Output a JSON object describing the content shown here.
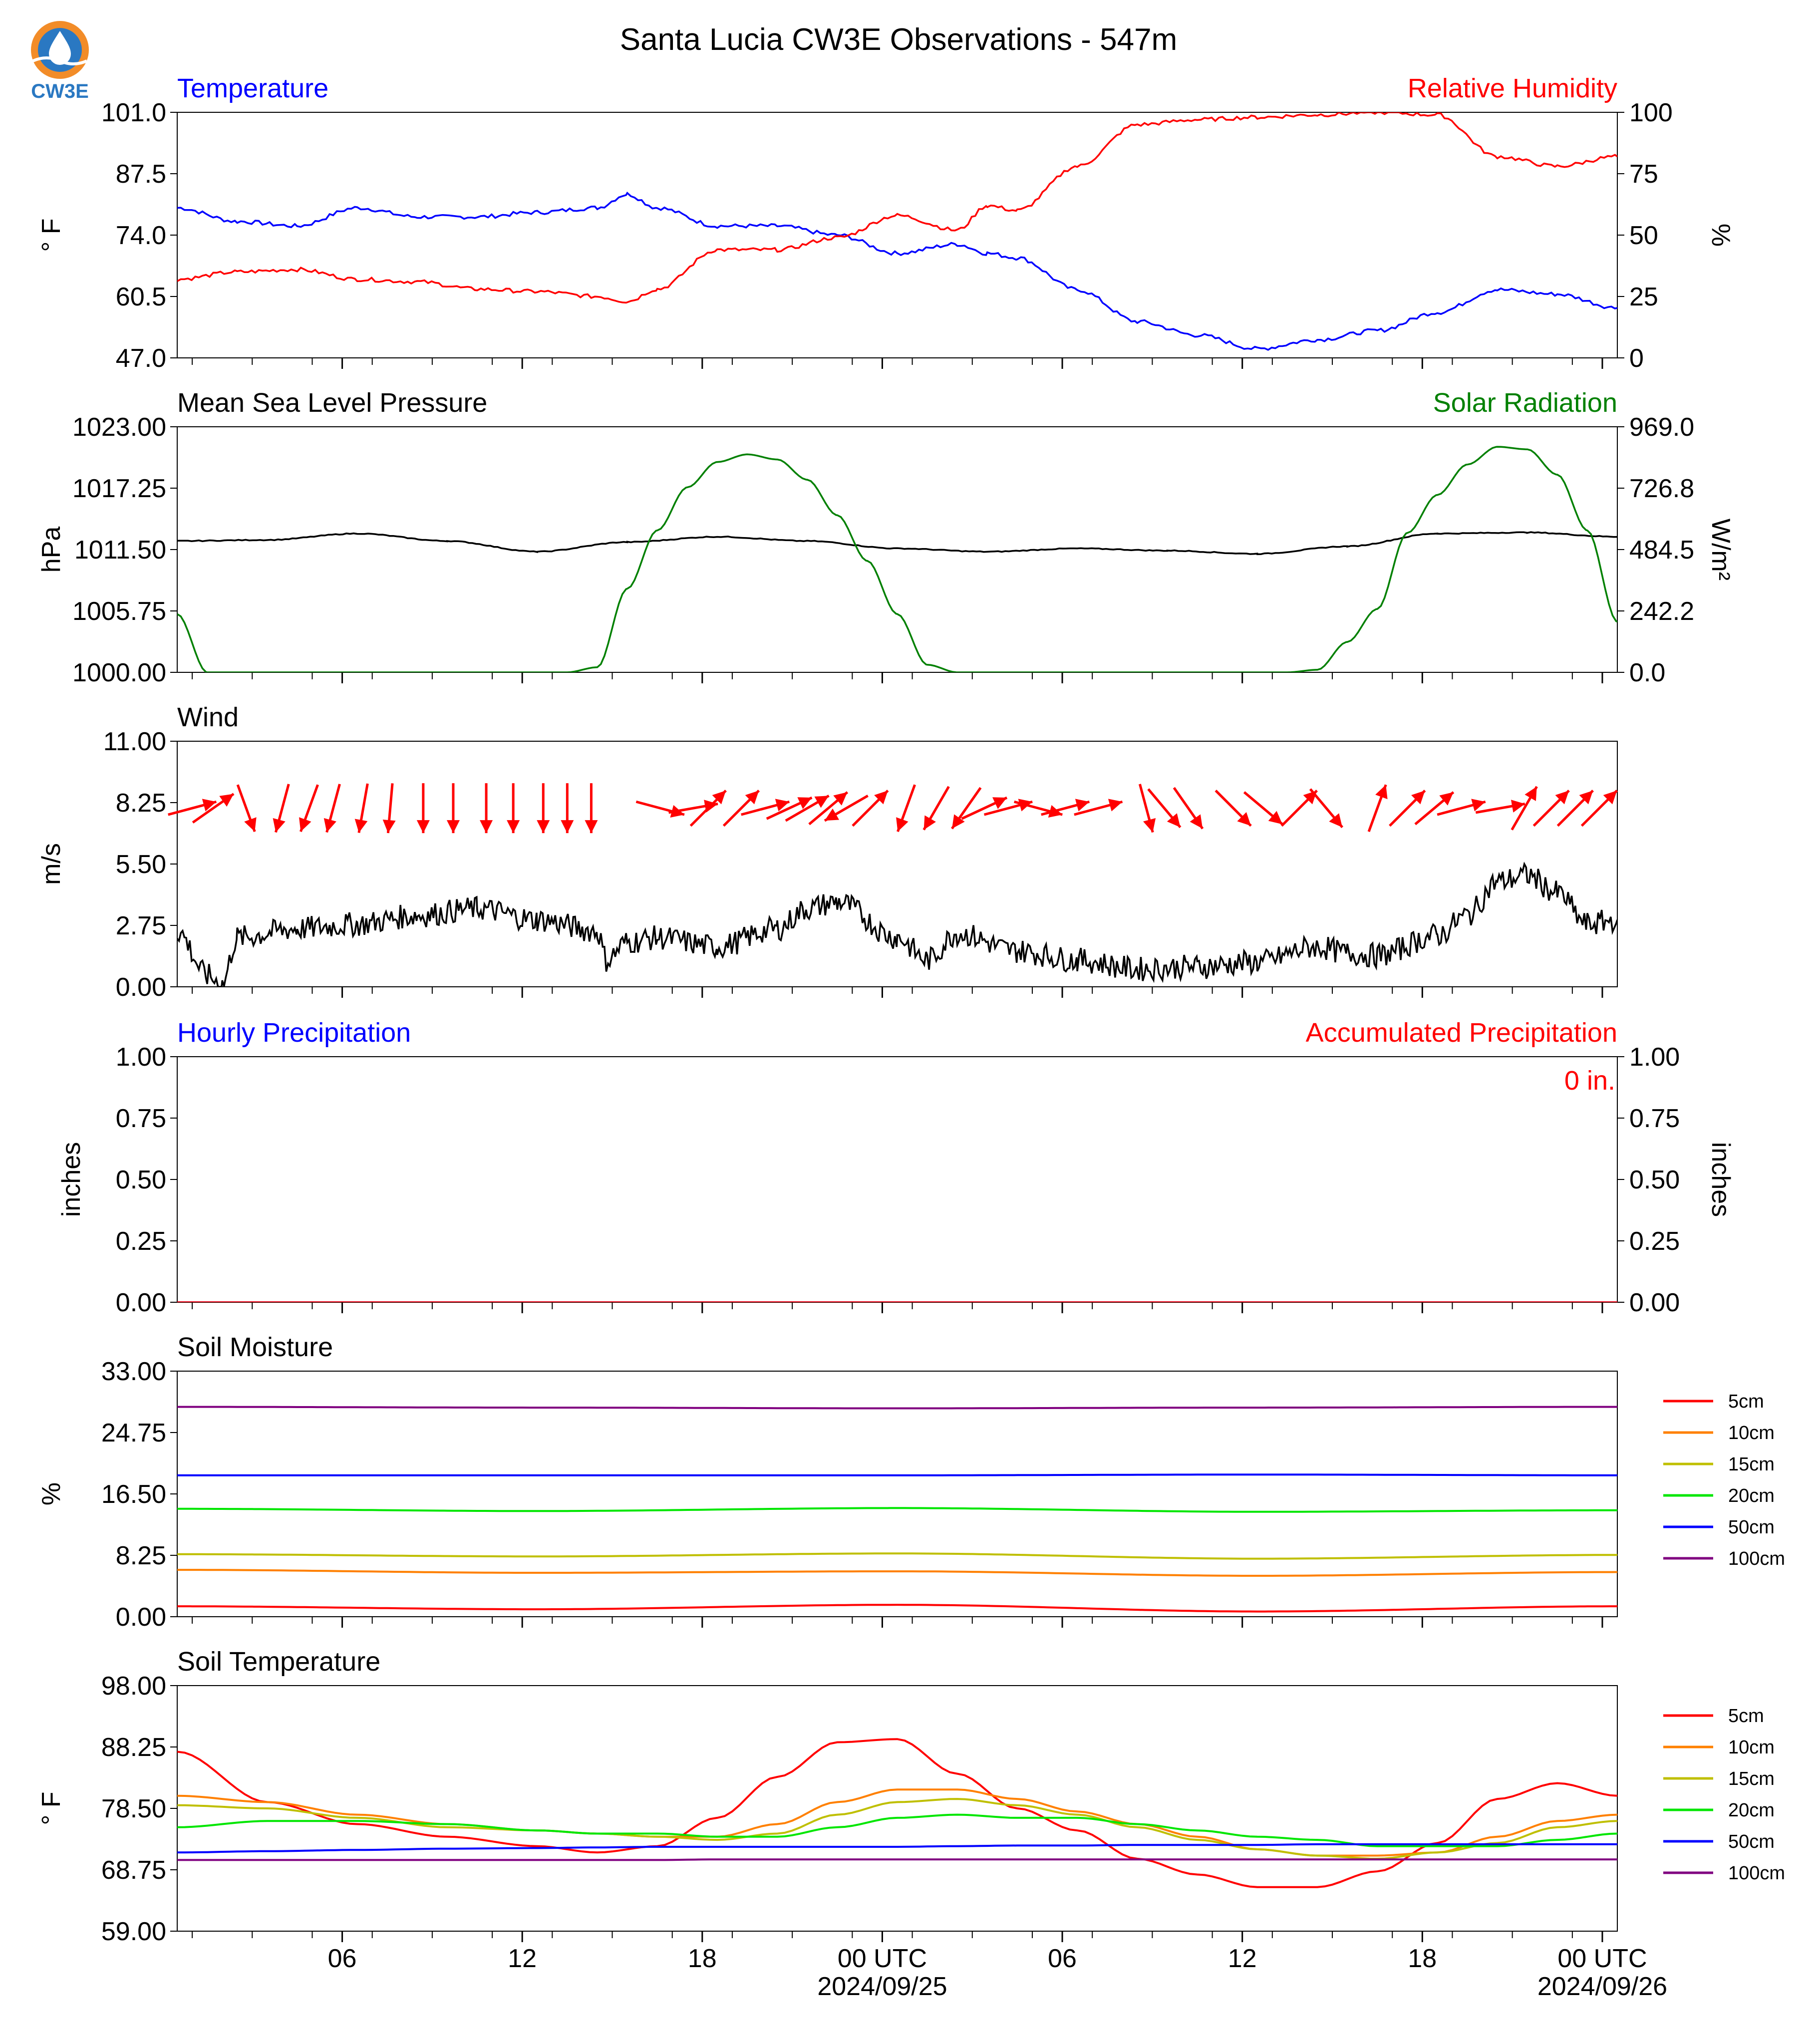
{
  "figure": {
    "title": "Santa Lucia CW3E Observations - 547m",
    "logo_text": "CW3E",
    "x_ticks": [
      "06",
      "12",
      "18",
      "00 UTC",
      "06",
      "12",
      "18",
      "00 UTC"
    ],
    "x_dates": [
      "2024/09/25",
      "2024/09/26"
    ],
    "colors": {
      "temperature": "#0000ff",
      "humidity": "#ff0000",
      "pressure": "#000000",
      "solar": "#008000",
      "wind_speed": "#000000",
      "wind_arrows": "#ff0000",
      "hourly_precip": "#0000ff",
      "accum_precip": "#ff0000"
    }
  },
  "chart_data": [
    {
      "type": "line",
      "panel": "temperature-humidity",
      "title_left": "Temperature",
      "title_right": "Relative Humidity",
      "ylabel_left": "° F",
      "ylabel_right": "%",
      "ylim_left": [
        47.0,
        101.0
      ],
      "ylim_right": [
        0,
        100
      ],
      "yticks_left": [
        "101.0",
        "87.5",
        "74.0",
        "60.5",
        "47.0"
      ],
      "yticks_right": [
        "100",
        "75",
        "50",
        "25",
        "0"
      ],
      "x_hours": [
        0,
        2,
        4,
        6,
        8,
        10,
        12,
        14,
        15,
        16,
        18,
        20,
        22,
        24,
        26,
        27,
        28,
        30,
        32,
        34,
        36,
        38,
        40,
        42,
        44,
        46,
        48
      ],
      "series": [
        {
          "name": "Temperature",
          "axis": "left",
          "values": [
            80,
            77,
            76,
            80,
            78,
            78,
            79,
            80,
            83,
            80,
            76,
            76,
            74,
            70,
            72,
            70,
            69,
            62,
            55,
            52,
            49,
            51,
            53,
            57,
            62,
            61,
            58
          ]
        },
        {
          "name": "Relative Humidity",
          "axis": "right",
          "values": [
            32,
            35,
            36,
            32,
            31,
            28,
            27,
            25,
            23,
            28,
            44,
            44,
            49,
            58,
            52,
            62,
            60,
            78,
            95,
            97,
            98,
            99,
            100,
            99,
            82,
            78,
            82
          ]
        }
      ]
    },
    {
      "type": "line",
      "panel": "pressure-solar",
      "title_left": "Mean Sea Level Pressure",
      "title_right": "Solar Radiation",
      "ylabel_left": "hPa",
      "ylabel_right": "W/m²",
      "ylim_left": [
        1000.0,
        1023.0
      ],
      "ylim_right": [
        0.0,
        969.0
      ],
      "yticks_left": [
        "1023.00",
        "1017.25",
        "1011.50",
        "1005.75",
        "1000.00"
      ],
      "yticks_right": [
        "969.0",
        "726.8",
        "484.5",
        "242.2",
        "0.0"
      ],
      "x_hours": [
        0,
        3,
        6,
        9,
        12,
        15,
        18,
        21,
        24,
        27,
        30,
        33,
        36,
        39,
        42,
        45,
        48
      ],
      "series": [
        {
          "name": "Mean Sea Level Pressure",
          "axis": "left",
          "values": [
            1012.3,
            1012.4,
            1013.0,
            1012.3,
            1011.3,
            1012.2,
            1012.7,
            1012.3,
            1011.6,
            1011.3,
            1011.6,
            1011.4,
            1011.1,
            1011.8,
            1013.0,
            1013.1,
            1012.7
          ]
        },
        {
          "name": "Solar Radiation",
          "axis": "right",
          "x": [
            0,
            1,
            13,
            14,
            15,
            16,
            17,
            18,
            19,
            20,
            21,
            22,
            23,
            24,
            25,
            26,
            37,
            38,
            39,
            40,
            41,
            42,
            43,
            44,
            45,
            46,
            47,
            48
          ],
          "values": [
            230,
            0,
            0,
            20,
            330,
            560,
            730,
            830,
            860,
            840,
            760,
            620,
            440,
            230,
            30,
            0,
            0,
            10,
            120,
            250,
            550,
            700,
            820,
            890,
            880,
            780,
            560,
            200
          ]
        }
      ]
    },
    {
      "type": "line",
      "panel": "wind",
      "title_left": "Wind",
      "ylabel_left": "m/s",
      "ylim_left": [
        0.0,
        11.0
      ],
      "yticks_left": [
        "11.00",
        "8.25",
        "5.50",
        "2.75",
        "0.00"
      ],
      "x_hours": [
        0,
        1,
        1.5,
        2,
        4,
        6,
        8,
        10,
        12,
        14,
        14.3,
        15,
        16,
        18,
        20,
        21,
        22,
        24,
        25,
        26,
        28,
        30,
        32,
        34,
        36,
        38,
        39,
        40,
        42,
        43,
        44,
        45,
        46,
        47,
        48
      ],
      "series": [
        {
          "name": "Wind speed",
          "values": [
            2.5,
            0.5,
            0.1,
            2.2,
            2.6,
            2.8,
            3.2,
            3.5,
            3.0,
            2.5,
            1.2,
            2.0,
            2.2,
            1.8,
            2.6,
            3.5,
            3.8,
            2.2,
            1.2,
            2.4,
            1.6,
            1.2,
            0.8,
            0.9,
            1.1,
            1.8,
            1.5,
            1.4,
            2.3,
            3.2,
            4.7,
            5.0,
            4.2,
            2.8,
            3.0
          ]
        }
      ],
      "wind_vectors": {
        "note": "direction: degrees the arrow points (0 = up/north, 90 = right/east)",
        "x_hours": [
          0.5,
          1.2,
          2.3,
          3.5,
          4.4,
          5.2,
          6.2,
          7.1,
          8.2,
          9.2,
          10.3,
          11.2,
          12.2,
          13.0,
          13.8,
          16.1,
          17.2,
          17.7,
          18.8,
          19.6,
          20.4,
          21.0,
          21.7,
          22.3,
          23.1,
          24.3,
          25.3,
          26.3,
          26.9,
          27.7,
          28.7,
          29.6,
          30.7,
          32.3,
          32.9,
          33.7,
          35.2,
          36.2,
          37.4,
          38.3,
          40.0,
          41.0,
          41.9,
          42.8,
          44.1,
          44.9,
          45.8,
          46.6,
          47.4
        ],
        "directions": [
          75,
          55,
          160,
          195,
          200,
          195,
          190,
          185,
          180,
          180,
          180,
          180,
          180,
          180,
          180,
          105,
          80,
          45,
          45,
          75,
          65,
          60,
          50,
          240,
          45,
          200,
          210,
          215,
          65,
          75,
          105,
          75,
          75,
          165,
          140,
          145,
          135,
          130,
          45,
          140,
          20,
          45,
          50,
          75,
          80,
          30,
          45,
          45,
          45
        ]
      }
    },
    {
      "type": "line",
      "panel": "precipitation",
      "title_left": "Hourly Precipitation",
      "title_right": "Accumulated Precipitation",
      "annotation": "0 in.",
      "ylabel_left": "inches",
      "ylabel_right": "inches",
      "ylim_left": [
        0.0,
        1.0
      ],
      "ylim_right": [
        0.0,
        1.0
      ],
      "yticks_left": [
        "1.00",
        "0.75",
        "0.50",
        "0.25",
        "0.00"
      ],
      "yticks_right": [
        "1.00",
        "0.75",
        "0.50",
        "0.25",
        "0.00"
      ],
      "x_hours": [
        0,
        48
      ],
      "series": [
        {
          "name": "Hourly Precipitation",
          "values": [
            0,
            0
          ]
        },
        {
          "name": "Accumulated Precipitation",
          "values": [
            0,
            0
          ]
        }
      ]
    },
    {
      "type": "line",
      "panel": "soil-moisture",
      "title_left": "Soil Moisture",
      "ylabel_left": "%",
      "ylim_left": [
        0.0,
        33.0
      ],
      "yticks_left": [
        "33.00",
        "24.75",
        "16.50",
        "8.25",
        "0.00"
      ],
      "x_hours": [
        0,
        12,
        24,
        36,
        48
      ],
      "series": [
        {
          "name": "5cm",
          "color": "#ff0000",
          "values": [
            1.4,
            1.0,
            1.6,
            0.7,
            1.4
          ]
        },
        {
          "name": "10cm",
          "color": "#ff8000",
          "values": [
            6.3,
            5.9,
            6.1,
            5.5,
            6.0
          ]
        },
        {
          "name": "15cm",
          "color": "#bfbf00",
          "values": [
            8.4,
            8.1,
            8.5,
            7.8,
            8.3
          ]
        },
        {
          "name": "20cm",
          "color": "#00e600",
          "values": [
            14.5,
            14.2,
            14.6,
            14.1,
            14.3
          ]
        },
        {
          "name": "50cm",
          "color": "#0000ff",
          "values": [
            19.0,
            19.0,
            19.0,
            19.1,
            19.0
          ]
        },
        {
          "name": "100cm",
          "color": "#800080",
          "values": [
            28.2,
            28.1,
            28.0,
            28.1,
            28.2
          ]
        }
      ]
    },
    {
      "type": "line",
      "panel": "soil-temperature",
      "title_left": "Soil Temperature",
      "ylabel_left": "° F",
      "ylim_left": [
        59.0,
        98.0
      ],
      "yticks_left": [
        "98.00",
        "88.25",
        "78.50",
        "68.75",
        "59.00"
      ],
      "x_hours": [
        0,
        3,
        6,
        9,
        12,
        14,
        16,
        18,
        20,
        22,
        24,
        26,
        28,
        30,
        32,
        34,
        36,
        38,
        40,
        42,
        44,
        46,
        48
      ],
      "series": [
        {
          "name": "5cm",
          "color": "#ff0000",
          "values": [
            87.5,
            79.5,
            76,
            74,
            72.5,
            71.5,
            72.5,
            77,
            83.5,
            89,
            89.5,
            84,
            78.5,
            75,
            70.5,
            68,
            66,
            66,
            68.5,
            73,
            80,
            82.5,
            80.5
          ]
        },
        {
          "name": "10cm",
          "color": "#ff8000",
          "values": [
            80.5,
            79.5,
            77.5,
            76,
            75,
            74.5,
            74,
            74,
            76,
            79.5,
            81.5,
            81.5,
            80,
            78,
            76,
            74,
            72,
            71,
            71,
            71.5,
            74,
            76.5,
            77.5
          ]
        },
        {
          "name": "15cm",
          "color": "#bfbf00",
          "values": [
            79,
            78.5,
            77,
            75.5,
            75,
            74.5,
            74,
            73.5,
            74.5,
            77.5,
            79.5,
            80,
            79,
            77.5,
            75.5,
            73.5,
            72,
            71,
            70.5,
            71.5,
            73,
            75.5,
            76.5
          ]
        },
        {
          "name": "20cm",
          "color": "#00e600",
          "values": [
            75.5,
            76.5,
            76.5,
            76,
            75,
            74.5,
            74.5,
            74,
            74,
            75.5,
            77,
            77.5,
            77,
            77,
            76,
            75,
            74,
            73.5,
            72.5,
            72.5,
            72.5,
            73.5,
            74.5
          ]
        },
        {
          "name": "50cm",
          "color": "#0000ff",
          "values": [
            71.5,
            71.7,
            71.9,
            72.1,
            72.2,
            72.3,
            72.4,
            72.4,
            72.4,
            72.4,
            72.4,
            72.5,
            72.6,
            72.6,
            72.7,
            72.7,
            72.7,
            72.8,
            72.8,
            72.8,
            72.8,
            72.8,
            72.8
          ]
        },
        {
          "name": "100cm",
          "color": "#800080",
          "values": [
            70.3,
            70.3,
            70.3,
            70.3,
            70.3,
            70.3,
            70.3,
            70.4,
            70.4,
            70.4,
            70.4,
            70.4,
            70.4,
            70.4,
            70.4,
            70.4,
            70.4,
            70.4,
            70.4,
            70.4,
            70.4,
            70.4,
            70.4
          ]
        }
      ]
    }
  ]
}
